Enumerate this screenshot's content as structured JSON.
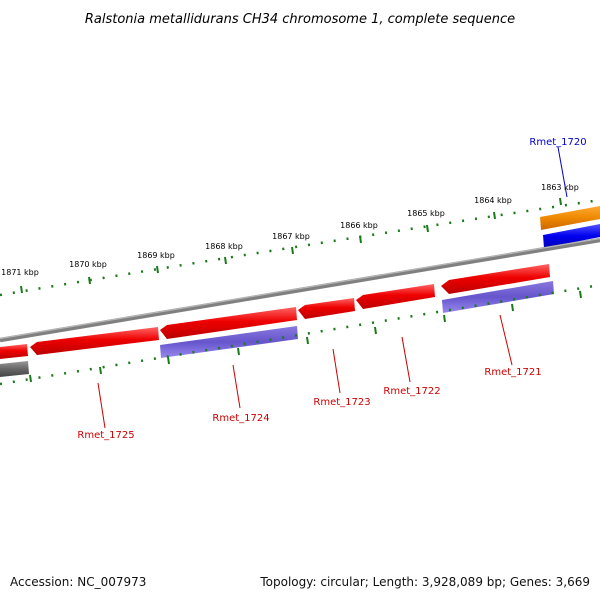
{
  "title": "Ralstonia metallidurans CH34 chromosome 1, complete sequence",
  "footer": {
    "accession": "Accession: NC_007973",
    "summary": "Topology: circular; Length: 3,928,089 bp; Genes: 3,669"
  },
  "kbp_labels": [
    "1871 kbp",
    "1870 kbp",
    "1869 kbp",
    "1868 kbp",
    "1867 kbp",
    "1866 kbp",
    "1865 kbp",
    "1864 kbp",
    "1863 kbp"
  ],
  "genes": [
    {
      "name": "Rmet_1720",
      "color": "#0000cc"
    },
    {
      "name": "Rmet_1721",
      "color": "#cc0000"
    },
    {
      "name": "Rmet_1722",
      "color": "#cc0000"
    },
    {
      "name": "Rmet_1723",
      "color": "#cc0000"
    },
    {
      "name": "Rmet_1724",
      "color": "#cc0000"
    },
    {
      "name": "Rmet_1725",
      "color": "#cc0000"
    }
  ],
  "colors": {
    "backbone": "#808080",
    "forward_cds": "#0000ee",
    "reverse_cds": "#ee0000",
    "rna": "#ee8800",
    "gene_feature": "#6655cc",
    "tick": "#1a7a1a"
  }
}
